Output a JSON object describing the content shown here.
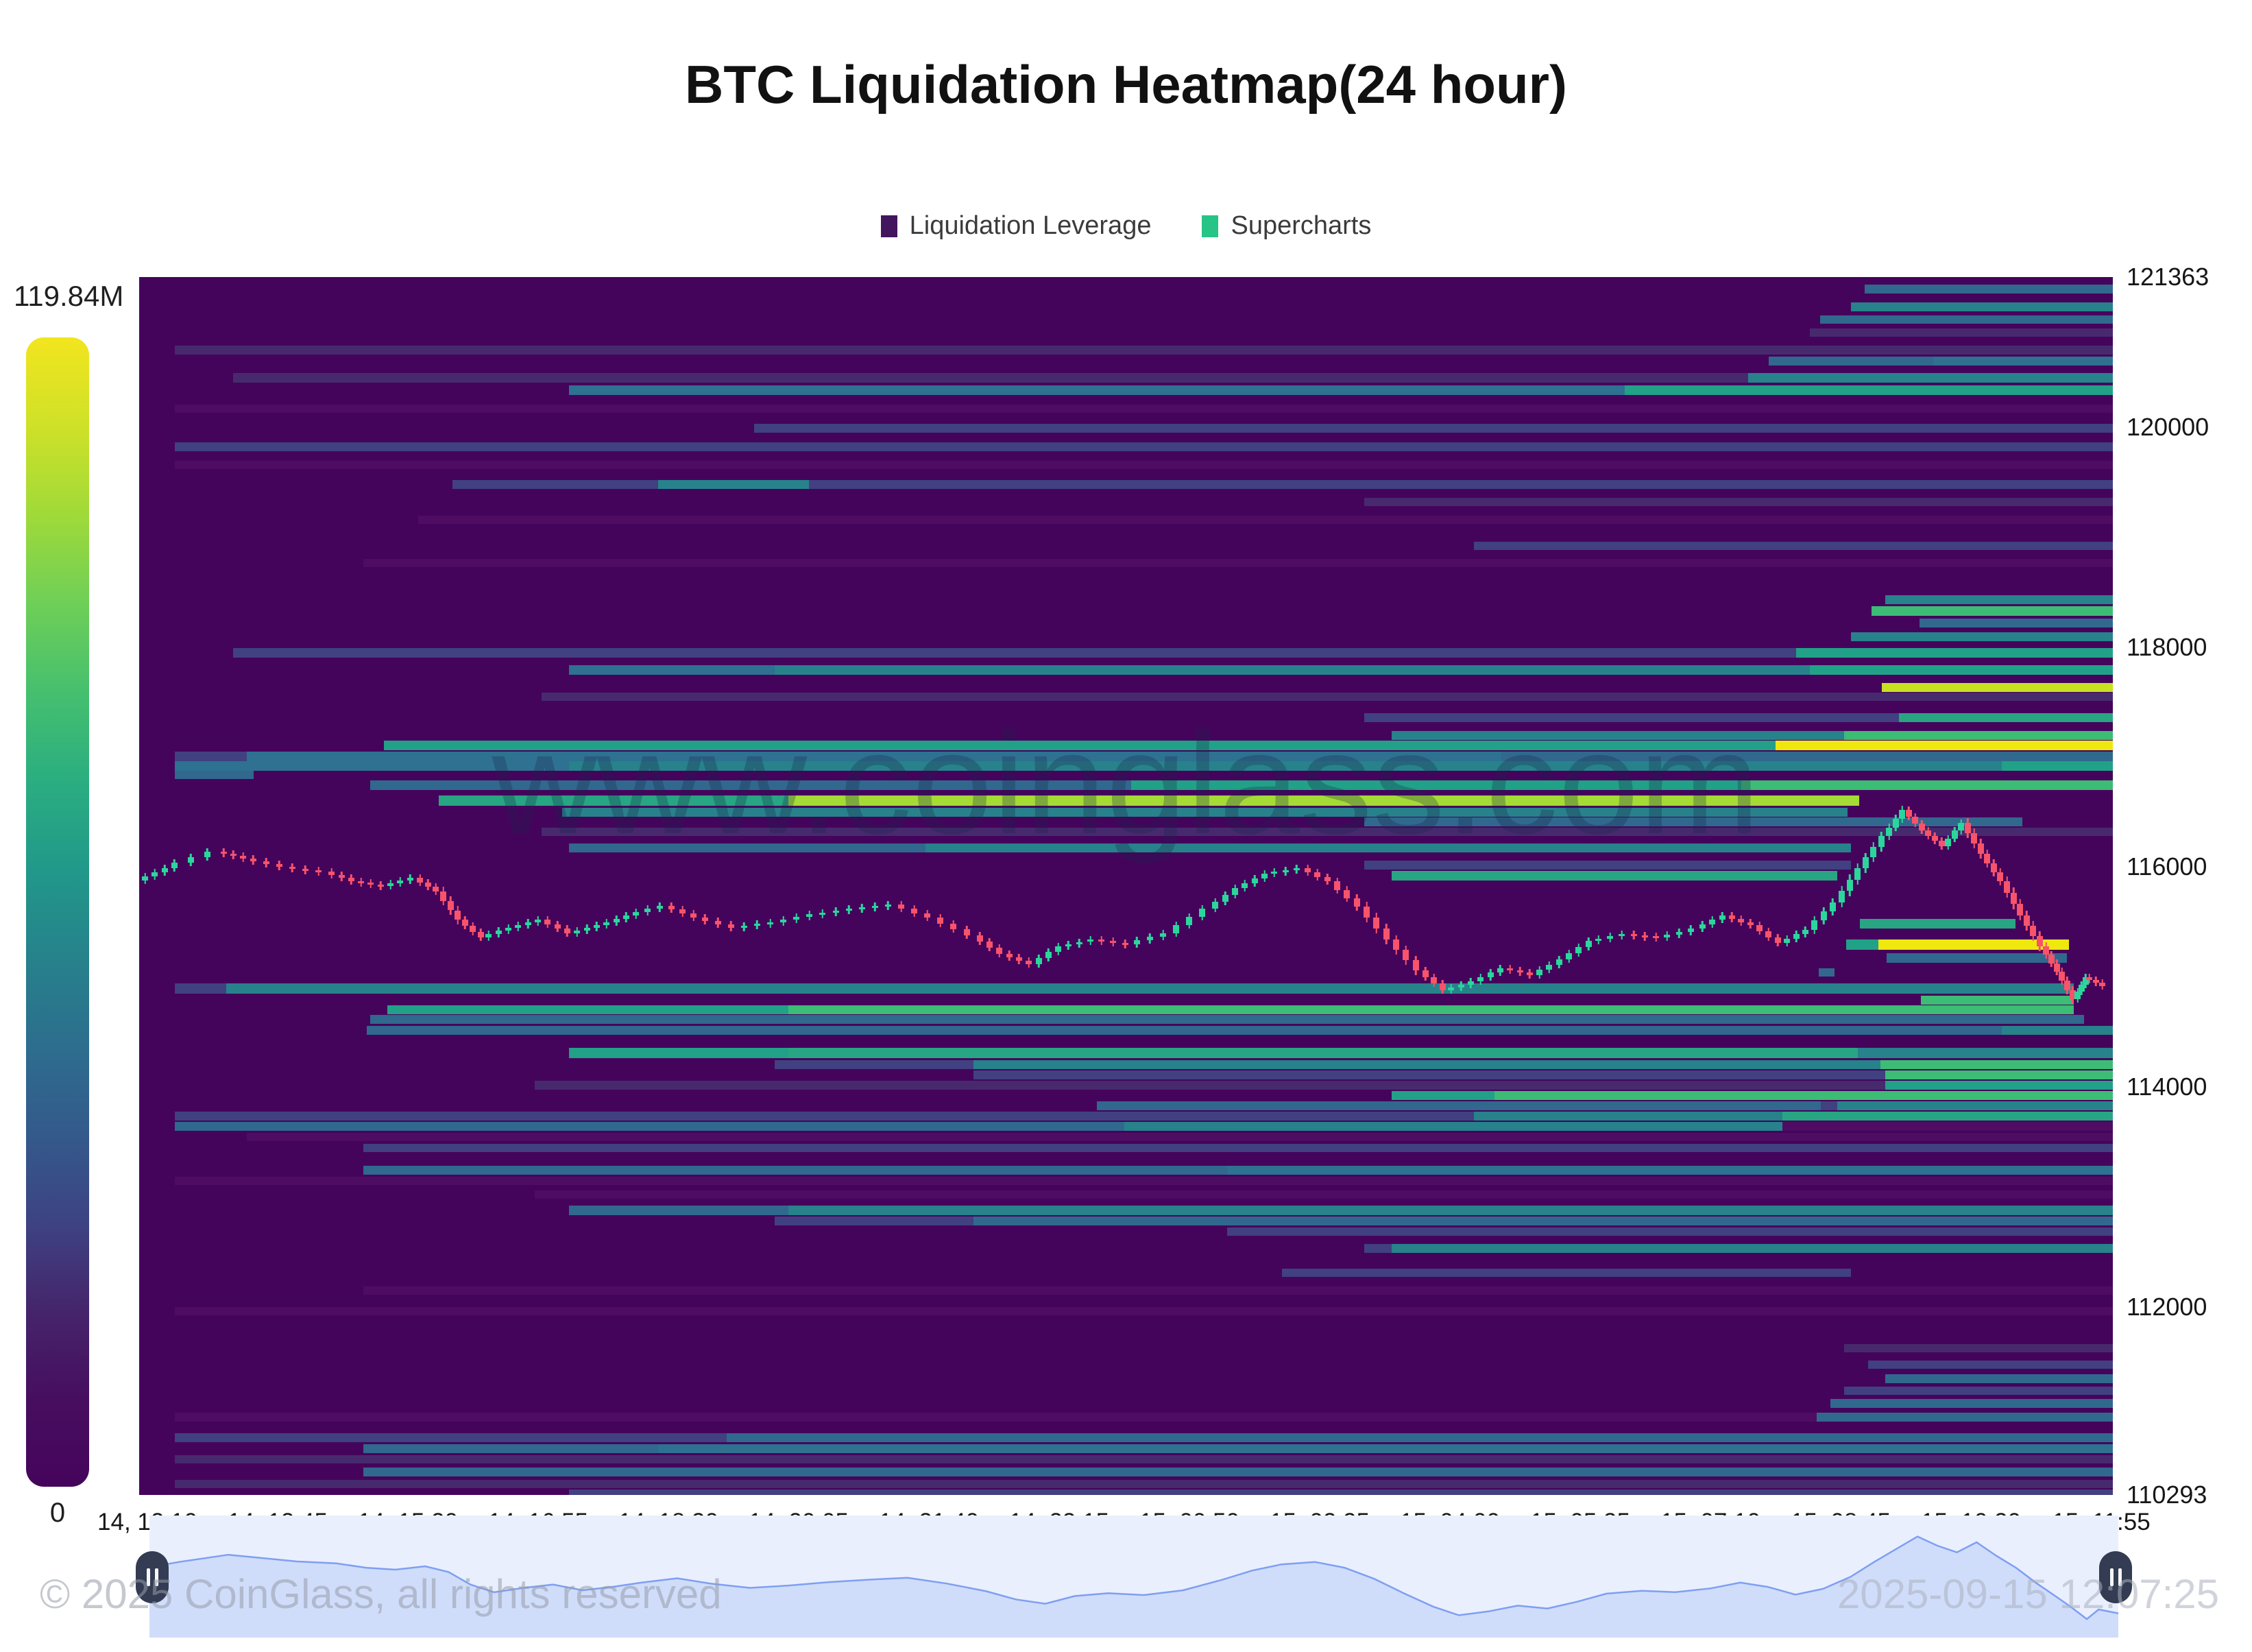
{
  "title": "BTC Liquidation Heatmap(24 hour)",
  "legend": {
    "items": [
      {
        "label": "Liquidation Leverage",
        "color": "#44155f"
      },
      {
        "label": "Supercharts",
        "color": "#26c487"
      }
    ]
  },
  "colorbar": {
    "max_label": "119.84M",
    "min_label": "0",
    "stops": [
      "#f2e51e",
      "#cfe128",
      "#a0da39",
      "#6fcf57",
      "#46c06e",
      "#2bae80",
      "#21998a",
      "#26828b",
      "#2d6e8e",
      "#345a8c",
      "#3d4383",
      "#45256b",
      "#470e5f",
      "#45045c"
    ]
  },
  "watermark": "www.coinglass.com",
  "footer": {
    "left": "© 2025 CoinGlass, all rights reserved",
    "right": "2025-09-15 12:07:25"
  },
  "navigator": {
    "bg": "#e9effd",
    "line_color": "#7e9ff2",
    "fill_color": "rgba(187,205,248,0.55)"
  },
  "chart_data": {
    "type": "heatmap",
    "title": "BTC Liquidation Heatmap(24 hour)",
    "legend_entries": [
      "Liquidation Leverage",
      "Supercharts"
    ],
    "colorbar_max": "119.84M",
    "colorbar_min": "0",
    "y_axis": {
      "min": 110293,
      "max": 121363,
      "ticks": [
        121363,
        120000,
        118000,
        116000,
        114000,
        112000,
        110293
      ]
    },
    "x_axis": {
      "labels": [
        "14, 12:10",
        "14, 13:45",
        "14, 15:20",
        "14, 16:55",
        "14, 18:30",
        "14, 20:05",
        "14, 21:40",
        "14, 23:15",
        "15, 00:50",
        "15, 02:25",
        "15, 04:00",
        "15, 05:35",
        "15, 07:10",
        "15, 08:45",
        "15, 10:20",
        "15, 11:55"
      ]
    },
    "palette": {
      "bg": "#45045c",
      "p2": "#4e0d63",
      "p3": "#472a6e",
      "b1": "#414081",
      "b2": "#31688e",
      "b3": "#2e7191",
      "t1": "#27828b",
      "t2": "#21a187",
      "g1": "#28a583",
      "g2": "#3cbc75",
      "g3": "#a4db36",
      "y1": "#c8e021",
      "y2": "#efe80e"
    },
    "candle_colors": {
      "up": "#2bd69c",
      "down": "#f8536a"
    },
    "bands": [
      [
        415,
        13,
        [
          [
            2720,
            "b2"
          ]
        ]
      ],
      [
        441,
        13,
        [
          [
            2700,
            "t1"
          ]
        ]
      ],
      [
        460,
        12,
        [
          [
            2655,
            "b2"
          ]
        ]
      ],
      [
        479,
        12,
        [
          [
            2640,
            "p3"
          ]
        ]
      ],
      [
        504,
        13,
        [
          [
            255,
            "p3"
          ]
        ]
      ],
      [
        520,
        13,
        [
          [
            2580,
            "b2"
          ],
          [
            2820,
            "b3"
          ]
        ]
      ],
      [
        544,
        14,
        [
          [
            340,
            "p3"
          ],
          [
            2550,
            "t1"
          ]
        ]
      ],
      [
        562,
        14,
        [
          [
            830,
            "b3"
          ],
          [
            2370,
            "t2"
          ]
        ]
      ],
      [
        590,
        12,
        [
          [
            255,
            "p2"
          ]
        ]
      ],
      [
        618,
        13,
        [
          [
            1100,
            "b1"
          ]
        ]
      ],
      [
        645,
        13,
        [
          [
            255,
            "b1"
          ]
        ]
      ],
      [
        672,
        12,
        [
          [
            255,
            "p2"
          ]
        ]
      ],
      [
        700,
        13,
        [
          [
            660,
            "b1"
          ],
          [
            960,
            "t1"
          ],
          [
            1180,
            "b1"
          ]
        ]
      ],
      [
        726,
        12,
        [
          [
            1990,
            "p3"
          ]
        ]
      ],
      [
        752,
        12,
        [
          [
            610,
            "p2"
          ]
        ]
      ],
      [
        790,
        12,
        [
          [
            2150,
            "b1"
          ]
        ]
      ],
      [
        815,
        12,
        [
          [
            530,
            "p2"
          ]
        ]
      ],
      [
        868,
        13,
        [
          [
            2750,
            "t1"
          ]
        ]
      ],
      [
        884,
        14,
        [
          [
            2730,
            "g2"
          ]
        ]
      ],
      [
        902,
        13,
        [
          [
            2800,
            "b2"
          ]
        ]
      ],
      [
        922,
        13,
        [
          [
            2700,
            "t1"
          ]
        ]
      ],
      [
        945,
        14,
        [
          [
            340,
            "b1"
          ],
          [
            2620,
            "t2"
          ]
        ]
      ],
      [
        970,
        14,
        [
          [
            830,
            "b3"
          ],
          [
            1130,
            "t1"
          ],
          [
            2640,
            "t2"
          ]
        ]
      ],
      [
        996,
        13,
        [
          [
            2745,
            "y1"
          ]
        ]
      ],
      [
        1010,
        12,
        [
          [
            790,
            "p3"
          ]
        ]
      ],
      [
        1040,
        13,
        [
          [
            1990,
            "b1"
          ],
          [
            2770,
            "g1"
          ]
        ]
      ],
      [
        1066,
        13,
        [
          [
            2030,
            "t1"
          ],
          [
            2690,
            "g2"
          ]
        ]
      ],
      [
        1080,
        14,
        [
          [
            560,
            "t2"
          ],
          [
            2590,
            "y2"
          ]
        ]
      ],
      [
        1096,
        14,
        [
          [
            255,
            "b1"
          ],
          [
            360,
            "b3"
          ],
          [
            2190,
            "b2"
          ]
        ]
      ],
      [
        1110,
        14,
        [
          [
            255,
            "b3"
          ],
          [
            830,
            "t1"
          ],
          [
            2920,
            "t2"
          ]
        ]
      ],
      [
        1124,
        12,
        [
          [
            255,
            "b2"
          ],
          [
            370,
            "bg"
          ]
        ]
      ],
      [
        1138,
        14,
        [
          [
            540,
            "b2"
          ],
          [
            1650,
            "t2"
          ],
          [
            2540,
            "g2"
          ]
        ]
      ],
      [
        1160,
        15,
        [
          [
            640,
            "g1"
          ],
          [
            1150,
            "g3"
          ],
          [
            2712,
            "bg"
          ]
        ]
      ],
      [
        1178,
        13,
        [
          [
            820,
            "t1"
          ],
          [
            2695,
            "bg"
          ]
        ]
      ],
      [
        1192,
        13,
        [
          [
            1990,
            "b2"
          ],
          [
            2950,
            "bg"
          ]
        ]
      ],
      [
        1207,
        12,
        [
          [
            790,
            "p3"
          ]
        ]
      ],
      [
        1230,
        13,
        [
          [
            830,
            "b2"
          ],
          [
            1350,
            "t1"
          ],
          [
            2700,
            "bg"
          ]
        ]
      ],
      [
        1255,
        13,
        [
          [
            1990,
            "b1"
          ],
          [
            2700,
            "bg"
          ]
        ]
      ],
      [
        1270,
        14,
        [
          [
            2030,
            "g1"
          ],
          [
            2680,
            "bg"
          ]
        ]
      ],
      [
        1340,
        14,
        [
          [
            2713,
            "g1"
          ],
          [
            2940,
            "bg"
          ]
        ]
      ],
      [
        1370,
        15,
        [
          [
            2693,
            "t2"
          ],
          [
            2740,
            "y2"
          ],
          [
            3018,
            "bg"
          ]
        ]
      ],
      [
        1390,
        14,
        [
          [
            2752,
            "b2"
          ],
          [
            3015,
            "bg"
          ]
        ]
      ],
      [
        1412,
        12,
        [
          [
            2653,
            "b2"
          ],
          [
            2676,
            "bg"
          ]
        ]
      ],
      [
        1434,
        15,
        [
          [
            255,
            "b1"
          ],
          [
            330,
            "t1"
          ],
          [
            3025,
            "bg"
          ]
        ]
      ],
      [
        1452,
        13,
        [
          [
            2802,
            "g2"
          ],
          [
            3025,
            "bg"
          ]
        ]
      ],
      [
        1466,
        13,
        [
          [
            565,
            "t2"
          ],
          [
            1150,
            "g2"
          ],
          [
            3025,
            "bg"
          ]
        ]
      ],
      [
        1480,
        13,
        [
          [
            540,
            "b2"
          ],
          [
            3040,
            "bg"
          ]
        ]
      ],
      [
        1496,
        13,
        [
          [
            535,
            "b2"
          ],
          [
            2920,
            "t1"
          ]
        ]
      ],
      [
        1528,
        15,
        [
          [
            830,
            "t2"
          ],
          [
            1150,
            "g1"
          ],
          [
            2710,
            "t1"
          ]
        ]
      ],
      [
        1546,
        13,
        [
          [
            1130,
            "b1"
          ],
          [
            1420,
            "t1"
          ],
          [
            2743,
            "g2"
          ]
        ]
      ],
      [
        1561,
        13,
        [
          [
            1420,
            "b1"
          ],
          [
            2750,
            "g2"
          ]
        ]
      ],
      [
        1576,
        13,
        [
          [
            780,
            "p3"
          ],
          [
            2750,
            "t2"
          ]
        ]
      ],
      [
        1591,
        13,
        [
          [
            2030,
            "t2"
          ],
          [
            2180,
            "g2"
          ]
        ]
      ],
      [
        1606,
        13,
        [
          [
            1600,
            "b2"
          ],
          [
            2656,
            "b1"
          ],
          [
            2680,
            "t1"
          ]
        ]
      ],
      [
        1621,
        13,
        [
          [
            255,
            "b1"
          ],
          [
            2150,
            "t1"
          ],
          [
            2600,
            "g1"
          ]
        ]
      ],
      [
        1636,
        13,
        [
          [
            255,
            "b2"
          ],
          [
            1640,
            "t1"
          ],
          [
            2600,
            "p2"
          ]
        ]
      ],
      [
        1652,
        12,
        [
          [
            360,
            "p2"
          ]
        ]
      ],
      [
        1668,
        12,
        [
          [
            530,
            "b1"
          ]
        ]
      ],
      [
        1700,
        13,
        [
          [
            530,
            "b2"
          ],
          [
            1790,
            "b3"
          ]
        ]
      ],
      [
        1716,
        12,
        [
          [
            255,
            "p2"
          ]
        ]
      ],
      [
        1736,
        12,
        [
          [
            780,
            "p2"
          ]
        ]
      ],
      [
        1758,
        14,
        [
          [
            830,
            "b2"
          ],
          [
            1150,
            "t1"
          ]
        ]
      ],
      [
        1774,
        13,
        [
          [
            1130,
            "b1"
          ],
          [
            1420,
            "b2"
          ]
        ]
      ],
      [
        1790,
        12,
        [
          [
            1790,
            "b1"
          ]
        ]
      ],
      [
        1814,
        13,
        [
          [
            1990,
            "b1"
          ],
          [
            2030,
            "t1"
          ]
        ]
      ],
      [
        1850,
        12,
        [
          [
            1870,
            "b1"
          ],
          [
            2700,
            "bg"
          ]
        ]
      ],
      [
        1876,
        12,
        [
          [
            530,
            "p2"
          ]
        ]
      ],
      [
        1906,
        12,
        [
          [
            255,
            "p2"
          ]
        ]
      ],
      [
        1960,
        12,
        [
          [
            2690,
            "p3"
          ]
        ]
      ],
      [
        1984,
        12,
        [
          [
            2725,
            "b1"
          ]
        ]
      ],
      [
        2004,
        13,
        [
          [
            2750,
            "b2"
          ]
        ]
      ],
      [
        2022,
        12,
        [
          [
            2690,
            "b1"
          ]
        ]
      ],
      [
        2040,
        13,
        [
          [
            2670,
            "b2"
          ]
        ]
      ],
      [
        2060,
        13,
        [
          [
            255,
            "p2"
          ],
          [
            2650,
            "b2"
          ]
        ]
      ],
      [
        2090,
        13,
        [
          [
            255,
            "b1"
          ],
          [
            1060,
            "b2"
          ]
        ]
      ],
      [
        2106,
        13,
        [
          [
            530,
            "b2"
          ],
          [
            960,
            "b3"
          ]
        ]
      ],
      [
        2122,
        12,
        [
          [
            255,
            "p3"
          ]
        ]
      ],
      [
        2140,
        13,
        [
          [
            530,
            "b2"
          ]
        ]
      ],
      [
        2158,
        12,
        [
          [
            255,
            "p3"
          ]
        ]
      ],
      [
        2172,
        12,
        [
          [
            830,
            "b1"
          ]
        ]
      ]
    ],
    "price_path": [
      [
        0.0,
        115880
      ],
      [
        0.015,
        115990
      ],
      [
        0.04,
        116140
      ],
      [
        0.055,
        116080
      ],
      [
        0.075,
        116000
      ],
      [
        0.095,
        115960
      ],
      [
        0.11,
        115870
      ],
      [
        0.125,
        115830
      ],
      [
        0.14,
        115900
      ],
      [
        0.152,
        115780
      ],
      [
        0.163,
        115520
      ],
      [
        0.175,
        115360
      ],
      [
        0.19,
        115450
      ],
      [
        0.205,
        115520
      ],
      [
        0.22,
        115400
      ],
      [
        0.235,
        115470
      ],
      [
        0.25,
        115560
      ],
      [
        0.268,
        115650
      ],
      [
        0.285,
        115540
      ],
      [
        0.305,
        115450
      ],
      [
        0.325,
        115500
      ],
      [
        0.345,
        115570
      ],
      [
        0.365,
        115620
      ],
      [
        0.385,
        115660
      ],
      [
        0.405,
        115540
      ],
      [
        0.425,
        115380
      ],
      [
        0.44,
        115210
      ],
      [
        0.455,
        115120
      ],
      [
        0.47,
        115280
      ],
      [
        0.487,
        115340
      ],
      [
        0.505,
        115300
      ],
      [
        0.525,
        115400
      ],
      [
        0.545,
        115620
      ],
      [
        0.56,
        115810
      ],
      [
        0.575,
        115940
      ],
      [
        0.592,
        115990
      ],
      [
        0.607,
        115870
      ],
      [
        0.622,
        115640
      ],
      [
        0.637,
        115340
      ],
      [
        0.652,
        115060
      ],
      [
        0.665,
        114880
      ],
      [
        0.68,
        114960
      ],
      [
        0.695,
        115080
      ],
      [
        0.71,
        115020
      ],
      [
        0.725,
        115160
      ],
      [
        0.74,
        115330
      ],
      [
        0.758,
        115390
      ],
      [
        0.775,
        115360
      ],
      [
        0.793,
        115440
      ],
      [
        0.808,
        115560
      ],
      [
        0.822,
        115470
      ],
      [
        0.836,
        115310
      ],
      [
        0.85,
        115430
      ],
      [
        0.864,
        115680
      ],
      [
        0.876,
        115990
      ],
      [
        0.888,
        116280
      ],
      [
        0.898,
        116520
      ],
      [
        0.908,
        116330
      ],
      [
        0.918,
        116190
      ],
      [
        0.928,
        116400
      ],
      [
        0.938,
        116120
      ],
      [
        0.948,
        115870
      ],
      [
        0.958,
        115560
      ],
      [
        0.968,
        115280
      ],
      [
        0.976,
        115050
      ],
      [
        0.984,
        114800
      ],
      [
        0.99,
        115000
      ],
      [
        1.0,
        114920
      ]
    ]
  }
}
